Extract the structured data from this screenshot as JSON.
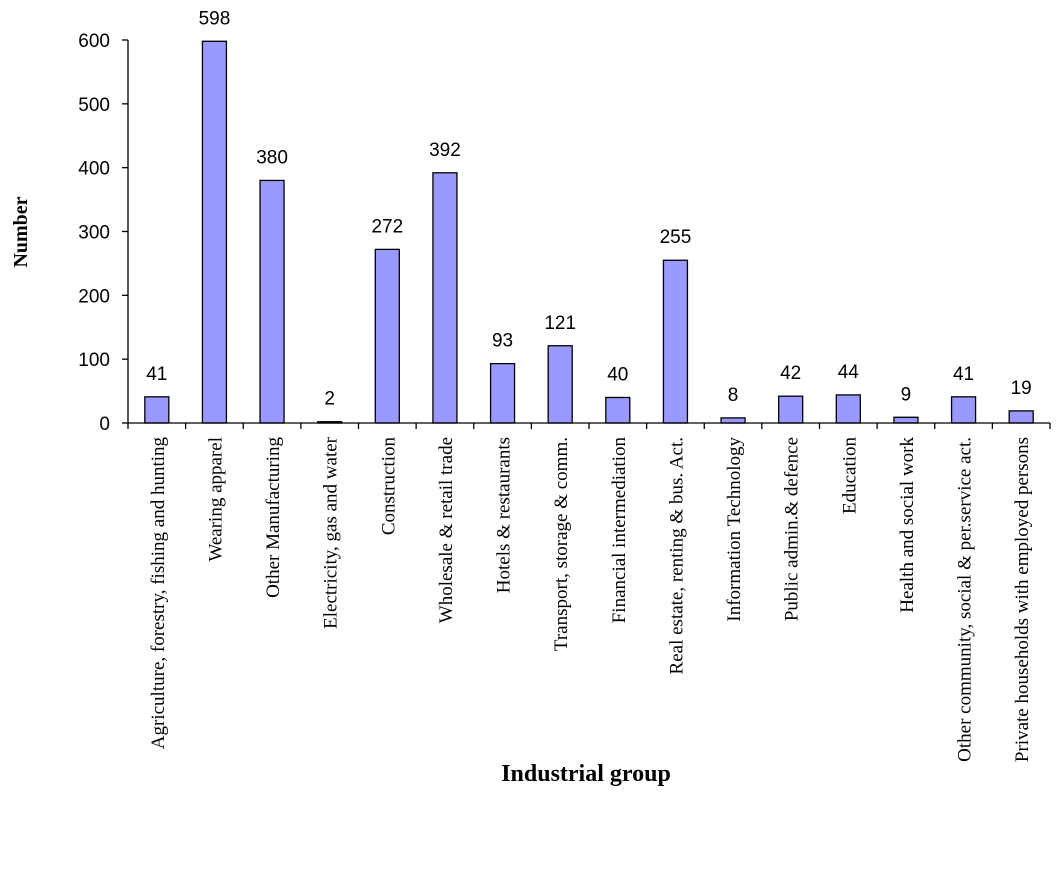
{
  "chart_data": {
    "type": "bar",
    "xlabel": "Industrial group",
    "ylabel": "Number",
    "ylim": [
      0,
      600
    ],
    "yticks": [
      0,
      100,
      200,
      300,
      400,
      500,
      600
    ],
    "grid": false,
    "legend": "none",
    "bar_color": "#9999ff",
    "categories": [
      "Agriculture, forestry, fishing and hunting",
      "Wearing apparel",
      "Other Manufacturing",
      "Electricity, gas and water",
      "Construction",
      "Wholesale & retail trade",
      "Hotels & restaurants",
      "Transport, storage & comm.",
      "Financial intermediation",
      "Real estate, renting & bus. Act.",
      "Information Technology",
      "Public admin.& defence",
      "Education",
      "Health and social work",
      "Other community, social & per.service act.",
      "Private households with employed persons"
    ],
    "values": [
      41,
      598,
      380,
      2,
      272,
      392,
      93,
      121,
      40,
      255,
      8,
      42,
      44,
      9,
      41,
      19
    ]
  }
}
